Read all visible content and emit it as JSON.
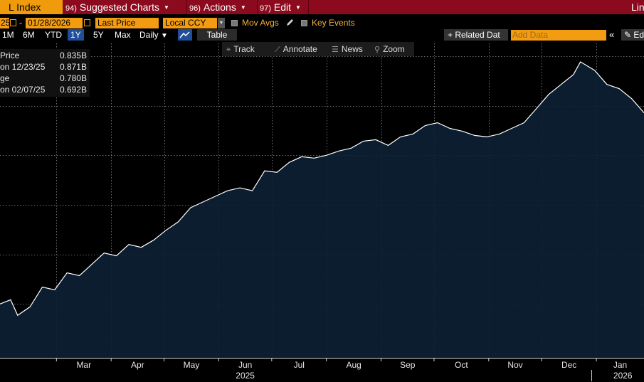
{
  "menubar": {
    "index_label": "L Index",
    "suggested": {
      "num": "94)",
      "label": "Suggested Charts"
    },
    "actions": {
      "num": "96)",
      "label": "Actions"
    },
    "edit": {
      "num": "97)",
      "label": "Edit"
    },
    "right_label": "Lin"
  },
  "controls": {
    "start_date": "25",
    "dash": "-",
    "end_date": "01/28/2026",
    "price_field": "Last Price",
    "currency": "Local CCY",
    "mov_avgs": "Mov Avgs",
    "key_events": "Key Events"
  },
  "timeframes": [
    "1M",
    "6M",
    "YTD",
    "1Y",
    "5Y",
    "Max"
  ],
  "active_timeframe": "1Y",
  "interval": "Daily",
  "table_label": "Table",
  "related_label": "+ Related Dat",
  "add_data_placeholder": "Add Data",
  "chevron": "«",
  "edit_label": "Ed",
  "chart_toolbar": {
    "track": "Track",
    "annotate": "Annotate",
    "news": "News",
    "zoom": "Zoom"
  },
  "legend": [
    {
      "label": "Price",
      "value": "0.835B"
    },
    {
      "label": "on 12/23/25",
      "value": "0.871B"
    },
    {
      "label": "ge",
      "value": "0.780B"
    },
    {
      "label": "on 02/07/25",
      "value": "0.692B"
    }
  ],
  "colors": {
    "menu_bg": "#8c0a1e",
    "accent_orange": "#f39c12",
    "area_fill": "#0d2035",
    "line": "#ffffff",
    "grid": "#8a8a8a"
  },
  "chart_data": {
    "type": "area",
    "series": [
      {
        "x": [
          "2025-01-28",
          "2025-02-03",
          "2025-02-07",
          "2025-02-14",
          "2025-02-21",
          "2025-02-28",
          "2025-03-07",
          "2025-03-14",
          "2025-03-21",
          "2025-03-28",
          "2025-04-04",
          "2025-04-11",
          "2025-04-18",
          "2025-04-25",
          "2025-05-02",
          "2025-05-09",
          "2025-05-16",
          "2025-05-23",
          "2025-05-30",
          "2025-06-06",
          "2025-06-13",
          "2025-06-20",
          "2025-06-27",
          "2025-07-04",
          "2025-07-11",
          "2025-07-18",
          "2025-07-25",
          "2025-08-01",
          "2025-08-08",
          "2025-08-15",
          "2025-08-22",
          "2025-08-29",
          "2025-09-05",
          "2025-09-12",
          "2025-09-19",
          "2025-09-26",
          "2025-10-03",
          "2025-10-10",
          "2025-10-17",
          "2025-10-24",
          "2025-10-31",
          "2025-11-07",
          "2025-11-14",
          "2025-11-21",
          "2025-11-28",
          "2025-12-05",
          "2025-12-12",
          "2025-12-19",
          "2025-12-23",
          "2025-12-31",
          "2026-01-07",
          "2026-01-14",
          "2026-01-21",
          "2026-01-28"
        ],
        "values": [
          0.7,
          0.703,
          0.692,
          0.698,
          0.712,
          0.71,
          0.722,
          0.72,
          0.728,
          0.736,
          0.734,
          0.742,
          0.74,
          0.745,
          0.752,
          0.758,
          0.768,
          0.772,
          0.776,
          0.78,
          0.782,
          0.78,
          0.794,
          0.793,
          0.8,
          0.804,
          0.803,
          0.805,
          0.808,
          0.81,
          0.815,
          0.816,
          0.812,
          0.818,
          0.82,
          0.826,
          0.828,
          0.824,
          0.822,
          0.819,
          0.818,
          0.82,
          0.824,
          0.828,
          0.838,
          0.848,
          0.855,
          0.862,
          0.871,
          0.865,
          0.855,
          0.852,
          0.845,
          0.835
        ]
      }
    ],
    "x_ticks": [
      "Mar",
      "Apr",
      "May",
      "Jun",
      "Jul",
      "Aug",
      "Sep",
      "Oct",
      "Nov",
      "Dec",
      "Jan"
    ],
    "x_ticks_dates": [
      "2025-03-01",
      "2025-04-01",
      "2025-05-01",
      "2025-06-01",
      "2025-07-01",
      "2025-08-01",
      "2025-09-01",
      "2025-10-01",
      "2025-11-01",
      "2025-12-01",
      "2026-01-01"
    ],
    "year_labels": [
      {
        "label": "2025",
        "date": "2025-06-16"
      },
      {
        "label": "2026",
        "date": "2026-01-16"
      }
    ],
    "year_boundary": "2026-01-01",
    "ylim": [
      0.662,
      0.884
    ],
    "x_range": [
      "2025-01-28",
      "2026-01-28"
    ],
    "grid": true,
    "legend_placement": "top-left"
  }
}
